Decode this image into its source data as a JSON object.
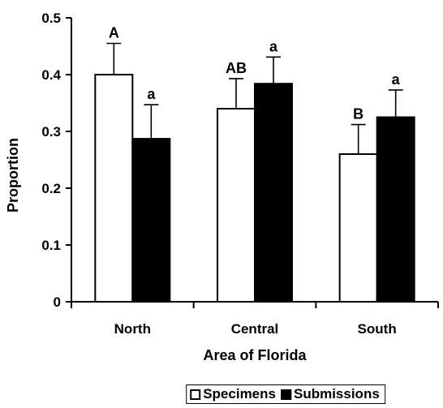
{
  "chart_data": {
    "type": "bar",
    "title": "",
    "xlabel": "Area of Florida",
    "ylabel": "Proportion",
    "categories": [
      "North",
      "Central",
      "South"
    ],
    "ylim": [
      0,
      0.5
    ],
    "yticks": [
      "0",
      "0.1",
      "0.2",
      "0.3",
      "0.4",
      "0.5"
    ],
    "ytick_values": [
      0,
      0.1,
      0.2,
      0.3,
      0.4,
      0.5
    ],
    "grid": false,
    "legend_position": "bottom",
    "series": [
      {
        "name": "Specimens",
        "color": "#ffffff",
        "values": [
          0.4,
          0.34,
          0.26
        ],
        "errors": [
          0.055,
          0.053,
          0.052
        ],
        "labels": [
          "A",
          "AB",
          "B"
        ]
      },
      {
        "name": "Submissions",
        "color": "#000000",
        "values": [
          0.287,
          0.384,
          0.325
        ],
        "errors": [
          0.06,
          0.047,
          0.048
        ],
        "labels": [
          "a",
          "a",
          "a"
        ]
      }
    ]
  }
}
